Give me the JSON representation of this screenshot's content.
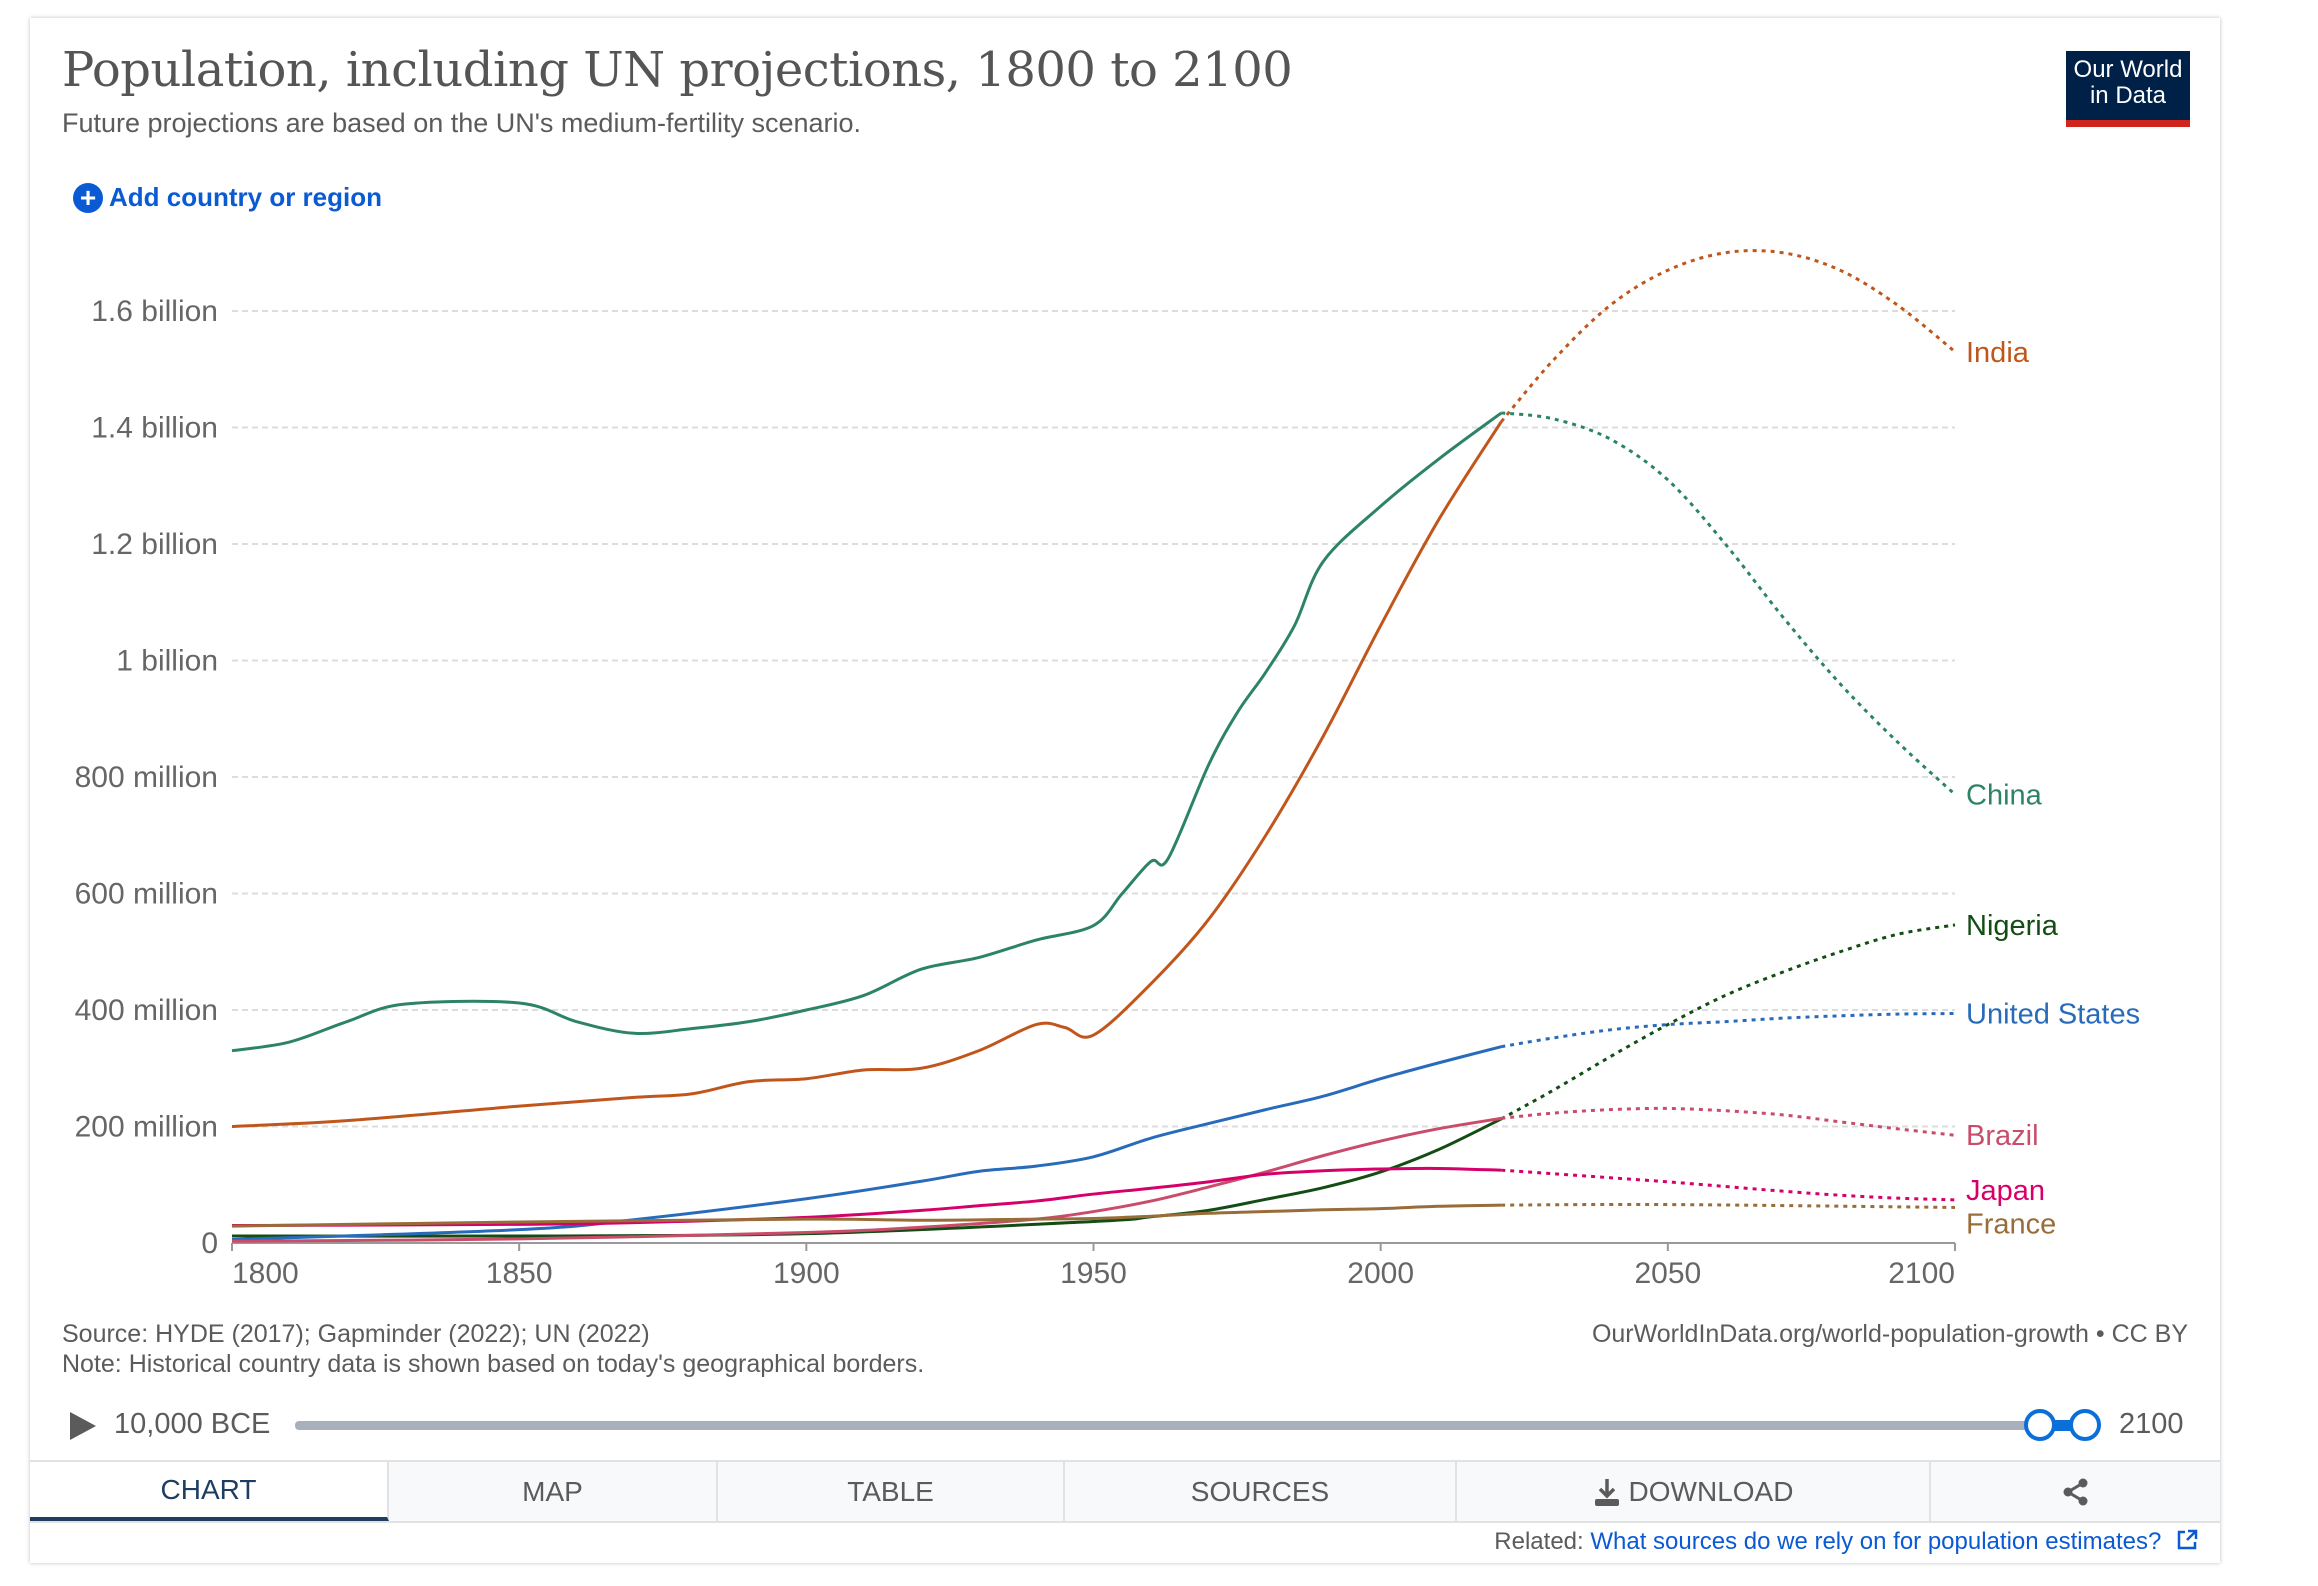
{
  "header": {
    "title": "Population, including UN projections, 1800 to 2100",
    "subtitle": "Future projections are based on the UN's medium-fertility scenario.",
    "logo_line1": "Our World",
    "logo_line2": "in Data",
    "add_button": "Add country or region",
    "add_icon": "plus-circle-icon"
  },
  "chart_data": {
    "type": "line",
    "title": "Population, including UN projections, 1800 to 2100",
    "xlim": [
      1800,
      2100
    ],
    "ylim": [
      0,
      1700000000
    ],
    "x_ticks": [
      1800,
      1850,
      1900,
      1950,
      2000,
      2050,
      2100
    ],
    "x_tick_labels": [
      "1800",
      "1850",
      "1900",
      "1950",
      "2000",
      "2050",
      "2100"
    ],
    "y_ticks": [
      0,
      200000000,
      400000000,
      600000000,
      800000000,
      1000000000,
      1200000000,
      1400000000,
      1600000000
    ],
    "y_tick_labels": [
      "0",
      "200 million",
      "400 million",
      "600 million",
      "800 million",
      "1 billion",
      "1.2 billion",
      "1.4 billion",
      "1.6 billion"
    ],
    "grid": "horizontal dashed",
    "legend": "line-end labels (right)",
    "projection_start": 2021,
    "projection_style": "dotted",
    "value_unit": "million people",
    "series": [
      {
        "name": "India",
        "color": "#c0561b",
        "x": [
          1800,
          1820,
          1850,
          1870,
          1880,
          1890,
          1900,
          1910,
          1920,
          1930,
          1940,
          1945,
          1950,
          1960,
          1970,
          1980,
          1990,
          2000,
          2010,
          2021,
          2030,
          2040,
          2050,
          2060,
          2070,
          2080,
          2090,
          2100
        ],
        "y": [
          200,
          210,
          235,
          250,
          256,
          277,
          282,
          297,
          300,
          330,
          375,
          370,
          357,
          445,
          555,
          700,
          870,
          1060,
          1240,
          1410,
          1515,
          1610,
          1670,
          1700,
          1700,
          1670,
          1610,
          1530
        ]
      },
      {
        "name": "China",
        "color": "#2c8465",
        "x": [
          1800,
          1810,
          1820,
          1830,
          1850,
          1860,
          1870,
          1880,
          1890,
          1900,
          1910,
          1920,
          1930,
          1940,
          1950,
          1955,
          1960,
          1963,
          1970,
          1975,
          1980,
          1985,
          1990,
          2000,
          2010,
          2021,
          2030,
          2040,
          2050,
          2060,
          2070,
          2080,
          2090,
          2100
        ],
        "y": [
          330,
          345,
          380,
          410,
          412,
          380,
          360,
          368,
          380,
          400,
          425,
          470,
          490,
          520,
          545,
          600,
          655,
          660,
          820,
          910,
          980,
          1060,
          1170,
          1265,
          1345,
          1425,
          1415,
          1380,
          1310,
          1200,
          1075,
          960,
          860,
          770
        ]
      },
      {
        "name": "Nigeria",
        "color": "#144d14",
        "x": [
          1800,
          1850,
          1900,
          1950,
          1960,
          1970,
          1980,
          1990,
          2000,
          2010,
          2021,
          2030,
          2040,
          2050,
          2060,
          2070,
          2080,
          2090,
          2100
        ],
        "y": [
          12,
          12,
          16,
          37,
          45,
          56,
          75,
          95,
          122,
          160,
          213,
          262,
          320,
          375,
          425,
          465,
          500,
          530,
          546
        ]
      },
      {
        "name": "United States",
        "color": "#286bbb",
        "x": [
          1800,
          1850,
          1870,
          1900,
          1920,
          1930,
          1940,
          1950,
          1960,
          1970,
          1980,
          1990,
          2000,
          2010,
          2021,
          2030,
          2040,
          2050,
          2060,
          2070,
          2080,
          2090,
          2100
        ],
        "y": [
          6,
          23,
          40,
          76,
          106,
          123,
          132,
          148,
          180,
          205,
          229,
          252,
          282,
          309,
          337,
          352,
          366,
          375,
          380,
          386,
          390,
          393,
          394
        ]
      },
      {
        "name": "Brazil",
        "color": "#c94d6b",
        "x": [
          1800,
          1850,
          1900,
          1920,
          1940,
          1950,
          1960,
          1970,
          1980,
          1990,
          2000,
          2010,
          2021,
          2030,
          2040,
          2050,
          2060,
          2070,
          2080,
          2090,
          2100
        ],
        "y": [
          3,
          7,
          18,
          27,
          41,
          54,
          72,
          96,
          122,
          150,
          175,
          196,
          214,
          223,
          229,
          231,
          227,
          220,
          208,
          196,
          185
        ]
      },
      {
        "name": "Japan",
        "color": "#d6006b",
        "x": [
          1800,
          1850,
          1870,
          1900,
          1920,
          1930,
          1940,
          1950,
          1960,
          1970,
          1980,
          1990,
          2000,
          2010,
          2021,
          2030,
          2040,
          2050,
          2060,
          2070,
          2080,
          2090,
          2100
        ],
        "y": [
          30,
          32,
          35,
          44,
          56,
          64,
          72,
          84,
          94,
          105,
          118,
          124,
          127,
          128,
          125,
          119,
          112,
          105,
          97,
          89,
          82,
          77,
          74
        ]
      },
      {
        "name": "France",
        "color": "#996d39",
        "x": [
          1800,
          1850,
          1900,
          1920,
          1940,
          1950,
          1960,
          1970,
          1980,
          1990,
          2000,
          2010,
          2021,
          2050,
          2100
        ],
        "y": [
          29,
          36,
          41,
          39,
          41,
          42,
          46,
          51,
          54,
          57,
          59,
          63,
          65,
          66,
          61
        ]
      }
    ]
  },
  "footer": {
    "source": "Source: HYDE (2017); Gapminder (2022); UN (2022)",
    "note": "Note: Historical country data is shown based on today's geographical borders.",
    "url": "OurWorldInData.org/world-population-growth • CC BY"
  },
  "timeline": {
    "start_label": "10,000 BCE",
    "end_label": "2100",
    "play_icon": "play-icon",
    "range_start": 1800,
    "range_end": 2100
  },
  "tabs": [
    {
      "label": "CHART",
      "active": true
    },
    {
      "label": "MAP"
    },
    {
      "label": "TABLE"
    },
    {
      "label": "SOURCES"
    },
    {
      "label": "DOWNLOAD",
      "icon": "download-icon"
    },
    {
      "label": "",
      "icon": "share-icon"
    }
  ],
  "related": {
    "prefix": "Related:",
    "link": "What sources do we rely on for population estimates?",
    "icon": "external-link-icon"
  }
}
